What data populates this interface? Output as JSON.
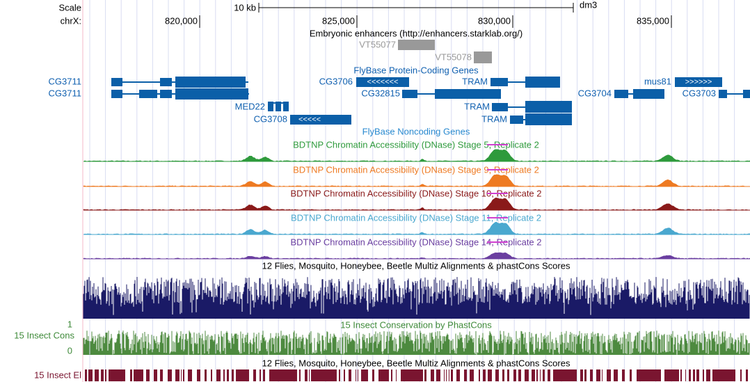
{
  "ruler": {
    "scale_label": "Scale",
    "scale_bar": "10 kb",
    "assembly": "dm3",
    "chrom": "chrX:",
    "ticks": [
      "820,000",
      "825,000",
      "830,000",
      "835,000"
    ]
  },
  "enhancers": {
    "title": "Embryonic enhancers (http://enhancers.starklab.org/)",
    "items": [
      "VT55077",
      "VT55078"
    ]
  },
  "genes": {
    "title": "FlyBase Protein-Coding Genes",
    "items": [
      "CG3711",
      "CG3711",
      "CG3706",
      "TRAM",
      "mus81",
      "CG32815",
      "CG3704",
      "CG3703",
      "MED22",
      "TRAM",
      "CG3708",
      "TRAM"
    ]
  },
  "noncoding": {
    "title": "FlyBase Noncoding Genes"
  },
  "dnase": [
    "BDTNP Chromatin Accessibility (DNase) Stage 5, Replicate 2",
    "BDTNP Chromatin Accessibility (DNase) Stage 9, Replicate 2",
    "BDTNP Chromatin Accessibility (DNase) Stage 10, Replicate 2",
    "BDTNP Chromatin Accessibility (DNase) Stage 11, Replicate 2",
    "BDTNP Chromatin Accessibility (DNase) Stage 14, Replicate 2"
  ],
  "multiz": {
    "title": "12 Flies, Mosquito, Honeybee, Beetle Multiz Alignments & phastCons Scores"
  },
  "cons": {
    "title": "15 Insect Conservation by PhastCons",
    "side_label": "15 Insect Cons",
    "ymax": "1",
    "ymin": "0"
  },
  "multiz2": {
    "title": "12 Flies, Mosquito, Honeybee, Beetle Multiz Alignments & phastCons Scores"
  },
  "elements": {
    "side_label": "15 Insect El"
  }
}
